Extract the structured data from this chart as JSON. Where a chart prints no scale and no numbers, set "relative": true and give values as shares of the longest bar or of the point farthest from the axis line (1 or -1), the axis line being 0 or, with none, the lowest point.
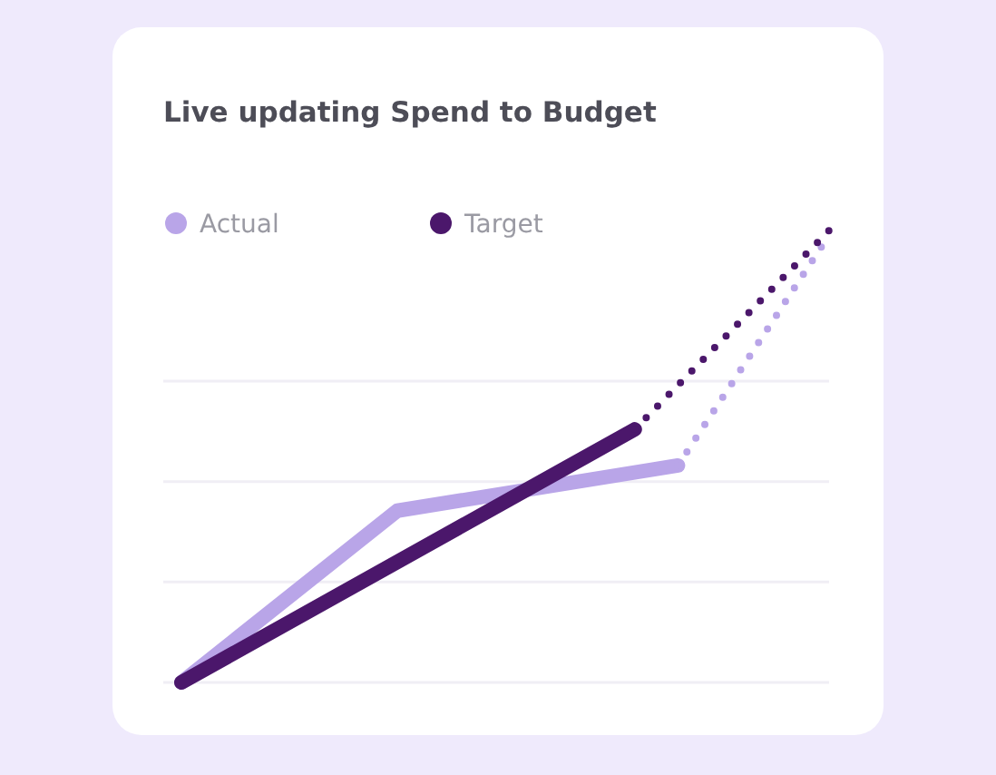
{
  "chart_data": {
    "type": "line",
    "title": "Live updating Spend to Budget",
    "relative": true,
    "grid": "y",
    "legend": "top left",
    "categories": [
      null,
      null,
      null,
      null,
      null,
      null,
      null,
      null,
      null,
      null,
      null,
      null,
      null,
      null,
      null,
      null,
      null,
      null,
      null,
      null,
      null,
      null,
      null,
      null,
      null,
      null,
      null,
      null,
      null,
      null,
      null
    ],
    "series": [
      {
        "name": "Actual",
        "color": "#b9a5e8",
        "line_style": "solid",
        "values": [
          0,
          null,
          null,
          null,
          null,
          null,
          null,
          null,
          null,
          null,
          0.38,
          null,
          null,
          null,
          null,
          null,
          null,
          null,
          null,
          null,
          null,
          null,
          null,
          0.48,
          null,
          null,
          null,
          null,
          null,
          null,
          null
        ]
      },
      {
        "name": "Target",
        "color": "#4b176b",
        "line_style": "solid",
        "values": [
          0,
          null,
          null,
          null,
          null,
          null,
          null,
          null,
          null,
          null,
          null,
          null,
          null,
          null,
          null,
          null,
          null,
          null,
          null,
          null,
          null,
          0.56,
          null,
          null,
          null,
          null,
          null,
          null,
          null,
          null,
          null
        ]
      },
      {
        "color": "#b9a5e8",
        "line_style": "dotted",
        "values": [
          null,
          null,
          null,
          null,
          null,
          null,
          null,
          null,
          null,
          null,
          null,
          null,
          null,
          null,
          null,
          null,
          null,
          null,
          null,
          null,
          null,
          null,
          null,
          0.48,
          null,
          null,
          null,
          null,
          null,
          null,
          0.99
        ]
      },
      {
        "color": "#4b176b",
        "line_style": "dotted",
        "values": [
          null,
          null,
          null,
          null,
          null,
          null,
          null,
          null,
          null,
          null,
          null,
          null,
          null,
          null,
          null,
          null,
          null,
          null,
          null,
          null,
          null,
          0.56,
          null,
          null,
          null,
          null,
          null,
          null,
          null,
          null,
          1
        ]
      }
    ]
  }
}
